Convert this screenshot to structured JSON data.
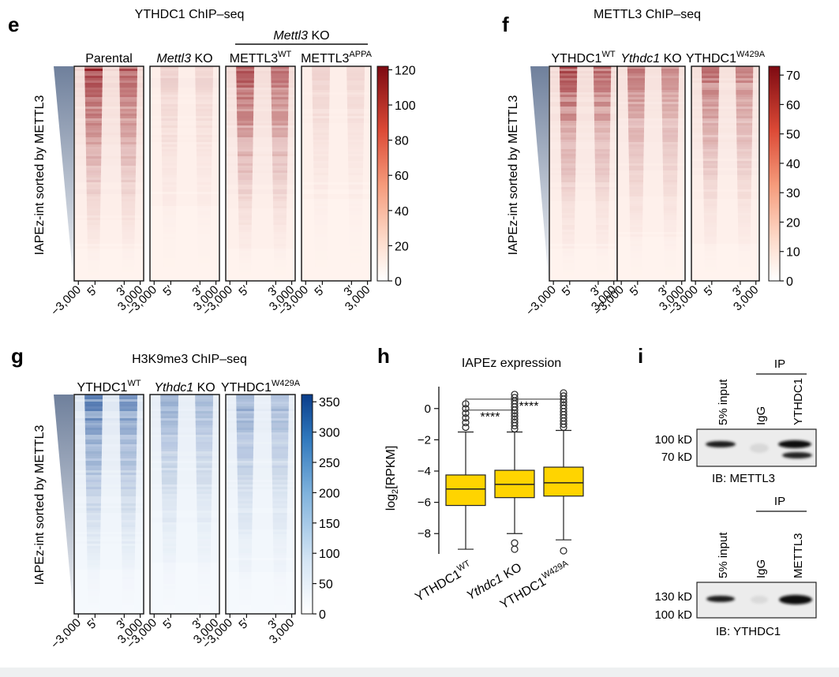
{
  "colors": {
    "red_dark": "#8b0a12",
    "red_light": "#fff3ee",
    "blue_dark": "#0b3f8f",
    "blue_light": "#f5f9fd",
    "box_yellow": "#ffd400",
    "sort_gradient": "#7f8fa8"
  },
  "panel_e": {
    "letter": "e",
    "title": "YTHDC1 ChIP–seq",
    "group_label_italic": "Mettl3",
    "group_label_rest": " KO",
    "columns": [
      {
        "main": "Parental",
        "sup": "",
        "italic": false
      },
      {
        "main": "Mettl3",
        "rest": " KO",
        "sup": "",
        "italic": true
      },
      {
        "main": "METTL3",
        "sup": "WT",
        "italic": false
      },
      {
        "main": "METTL3",
        "sup": "APPA",
        "italic": false
      }
    ],
    "ylabel": "IAPEz-int sorted by METTL3",
    "colorbar_ticks": [
      "120",
      "100",
      "80",
      "60",
      "40",
      "20",
      "0"
    ],
    "colorbar_values": [
      120,
      100,
      80,
      60,
      40,
      20,
      0
    ],
    "colorbar_max": 122,
    "xticks": [
      "−3,000",
      "5′",
      "3′",
      "3,000"
    ],
    "intensity": [
      1.0,
      0.25,
      0.95,
      0.22
    ]
  },
  "panel_f": {
    "letter": "f",
    "title": "METTL3 ChIP–seq",
    "columns": [
      {
        "main": "YTHDC1",
        "sup": "WT",
        "italic": false
      },
      {
        "main": "Ythdc1",
        "rest": " KO",
        "sup": "",
        "italic": true
      },
      {
        "main": "YTHDC1",
        "sup": "W429A",
        "italic": false
      }
    ],
    "ylabel": "IAPEz-int sorted by METTL3",
    "colorbar_ticks": [
      "70",
      "60",
      "50",
      "40",
      "30",
      "20",
      "10",
      "0"
    ],
    "colorbar_values": [
      70,
      60,
      50,
      40,
      30,
      20,
      10,
      0
    ],
    "colorbar_max": 73,
    "xticks": [
      "−3,000",
      "5′",
      "3′",
      "3,000"
    ],
    "intensity": [
      0.9,
      0.7,
      0.75
    ]
  },
  "panel_g": {
    "letter": "g",
    "title": "H3K9me3 ChIP–seq",
    "columns": [
      {
        "main": "YTHDC1",
        "sup": "WT",
        "italic": false
      },
      {
        "main": "Ythdc1",
        "rest": " KO",
        "sup": "",
        "italic": true
      },
      {
        "main": "YTHDC1",
        "sup": "W429A",
        "italic": false
      }
    ],
    "ylabel": "IAPEz-int sorted by METTL3",
    "colorbar_ticks": [
      "350",
      "300",
      "250",
      "200",
      "150",
      "100",
      "50",
      "0"
    ],
    "colorbar_values": [
      350,
      300,
      250,
      200,
      150,
      100,
      50,
      0
    ],
    "colorbar_max": 362,
    "xticks": [
      "−3,000",
      "5′",
      "3′",
      "3,000"
    ],
    "intensity": [
      0.85,
      0.55,
      0.6
    ]
  },
  "panel_h": {
    "letter": "h",
    "title": "IAPEz expression",
    "ylabel_main": "log",
    "ylabel_sub": "2",
    "ylabel_rest": "[RPKM]",
    "significance": "****",
    "chart_data": {
      "type": "box",
      "ylim": [
        -9.3,
        1.3
      ],
      "yticks": [
        0,
        -2,
        -4,
        -6,
        -8
      ],
      "ytick_labels": [
        "0",
        "−2",
        "−4",
        "−6",
        "−8"
      ],
      "categories": [
        {
          "main": "YTHDC1",
          "sup": "WT",
          "italic": false
        },
        {
          "main": "Ythdc1",
          "rest": " KO",
          "sup": "",
          "italic": true
        },
        {
          "main": "YTHDC1",
          "sup": "W429A",
          "italic": false
        }
      ],
      "boxes": [
        {
          "whisker_low": -9.0,
          "q1": -6.2,
          "median": -5.15,
          "q3": -4.25,
          "whisker_high": -1.5,
          "outliers_high": [
            -1.2,
            -0.9,
            -0.6,
            -0.3,
            0.0,
            0.3
          ],
          "outliers_low": []
        },
        {
          "whisker_low": -8.0,
          "q1": -5.7,
          "median": -4.85,
          "q3": -3.95,
          "whisker_high": -1.5,
          "outliers_high": [
            -1.3,
            -1.1,
            -0.9,
            -0.7,
            -0.5,
            -0.3,
            -0.1,
            0.1,
            0.3,
            0.5,
            0.7,
            0.9
          ],
          "outliers_low": [
            -8.6,
            -9.0
          ]
        },
        {
          "whisker_low": -8.4,
          "q1": -5.6,
          "median": -4.75,
          "q3": -3.75,
          "whisker_high": -1.4,
          "outliers_high": [
            -1.2,
            -1.0,
            -0.8,
            -0.6,
            -0.4,
            -0.2,
            0.0,
            0.2,
            0.4,
            0.6,
            0.8,
            1.0
          ],
          "outliers_low": [
            -9.1
          ]
        }
      ],
      "comparisons": [
        {
          "from": 0,
          "to": 1,
          "label": "****"
        },
        {
          "from": 0,
          "to": 2,
          "label": "****"
        }
      ]
    }
  },
  "panel_i": {
    "letter": "i",
    "blot1": {
      "lanes": [
        "5% input",
        "IgG",
        "YTHDC1"
      ],
      "ip_label": "IP",
      "markers": [
        "100 kD",
        "70 kD"
      ],
      "ib_label": "IB: METTL3"
    },
    "blot2": {
      "lanes": [
        "5% input",
        "IgG",
        "METTL3"
      ],
      "ip_label": "IP",
      "markers": [
        "130 kD",
        "100 kD"
      ],
      "ib_label": "IB: YTHDC1"
    }
  }
}
